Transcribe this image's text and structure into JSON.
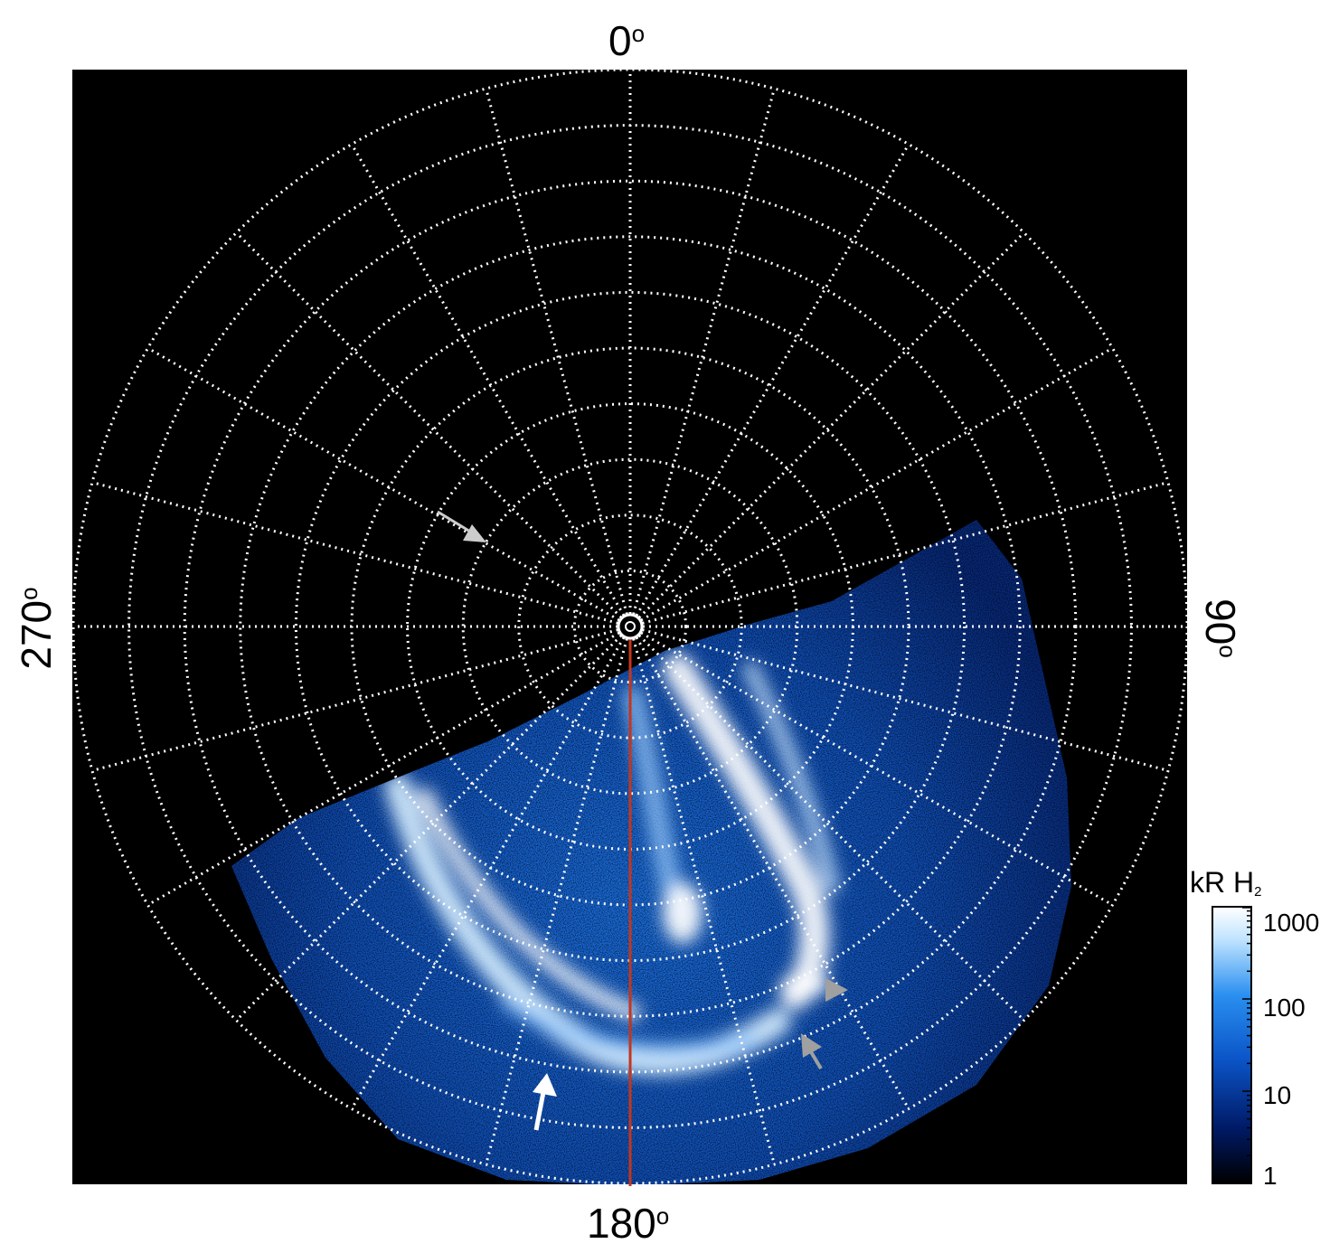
{
  "polar_map": {
    "label_top": "0",
    "label_right": "90",
    "label_bottom": "180",
    "label_left": "270",
    "degree_symbol": "o",
    "meridian_step_deg": 15,
    "ring_count": 10,
    "background_color": "#000000",
    "grid_color": "#ffffff",
    "meridian_line_color": "#c4361c"
  },
  "colorbar": {
    "title_main": "kR H",
    "title_sub": "2",
    "scale": "log",
    "range": [
      1,
      1000
    ],
    "ticks": [
      "1000",
      "100",
      "10",
      "1"
    ],
    "colors": [
      "#000000",
      "#001a66",
      "#0b55c8",
      "#2a8ff0",
      "#bfe3ff",
      "#ffffff"
    ]
  },
  "annotations": {
    "arrow_colors": [
      "#ffffff",
      "#cccccc",
      "#a0a0a0"
    ]
  }
}
